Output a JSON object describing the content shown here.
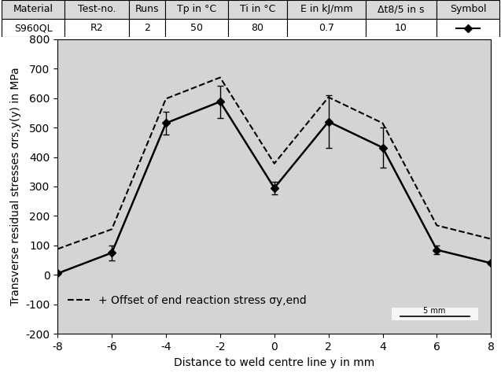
{
  "table": {
    "header": [
      "Material",
      "Test-no.",
      "Runs",
      "Tp in °C",
      "Ti in °C",
      "E in kJ/mm",
      "Δt8/5 in s",
      "Symbol"
    ],
    "rows": [
      [
        "S960QL",
        "R2",
        "2",
        "50",
        "80",
        "0.7",
        "10"
      ]
    ]
  },
  "chart_data": {
    "type": "line",
    "x_label": "Distance to weld centre line y in mm",
    "y_label": "Transverse residual stresses σrs,y(y) in MPa",
    "x": [
      -8,
      -6,
      -4,
      -2,
      0,
      2,
      4,
      6,
      8
    ],
    "series": [
      {
        "color": "#000000",
        "marker": "diamond",
        "line_style": "solid",
        "values": [
          5,
          75,
          515,
          588,
          295,
          520,
          432,
          85,
          40
        ],
        "errors": [
          5,
          25,
          38,
          55,
          22,
          90,
          68,
          15,
          5
        ]
      },
      {
        "name": "+ Offset of end reaction stress σy,end",
        "color": "#000000",
        "line_style": "dashed",
        "values": [
          88,
          155,
          598,
          670,
          378,
          603,
          515,
          168,
          122
        ]
      }
    ],
    "xlim": [
      -8,
      8
    ],
    "xticks": [
      -8,
      -6,
      -4,
      -2,
      0,
      2,
      4,
      6,
      8
    ],
    "ylim": [
      -200,
      800
    ],
    "yticks": [
      -200,
      -100,
      0,
      100,
      200,
      300,
      400,
      500,
      600,
      700,
      800
    ],
    "grid": false,
    "legend": "lower left",
    "annotations": [
      "5 mm"
    ]
  }
}
